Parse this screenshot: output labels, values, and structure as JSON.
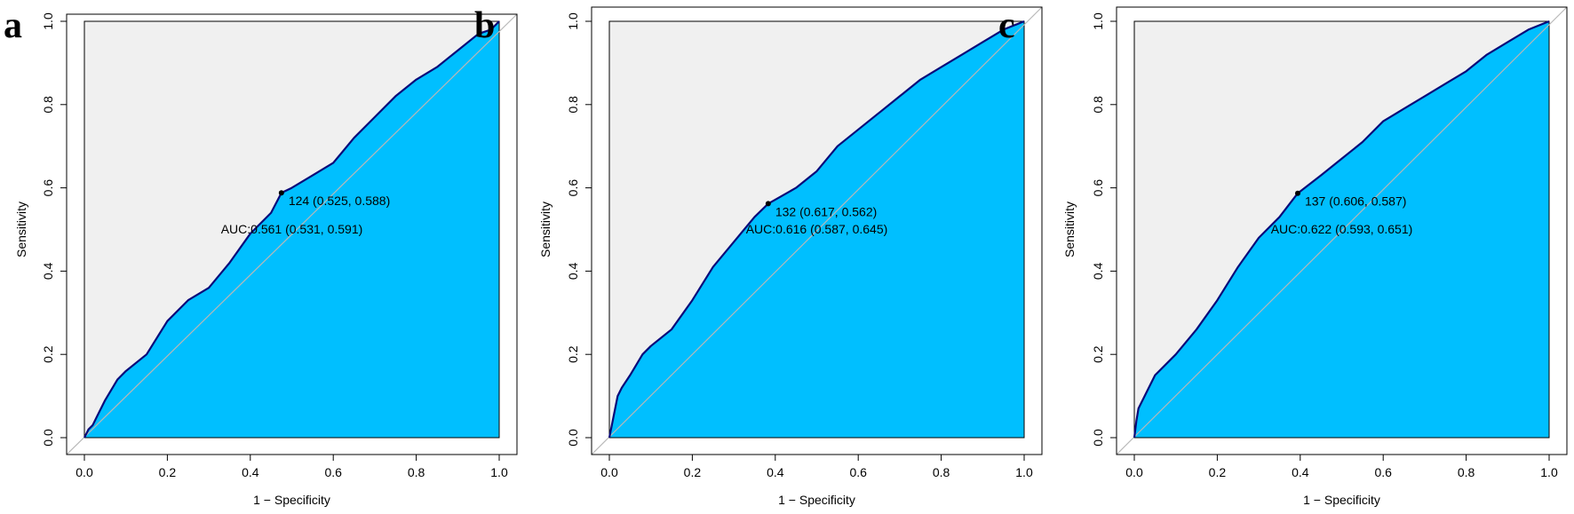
{
  "colors": {
    "fill": "#00BFFF",
    "curve": "#0A0A7A",
    "outside": "#F0F0F0",
    "diagonal": "#B8B8B8"
  },
  "chart_data": [
    {
      "panel": "a",
      "type": "area",
      "xlabel": "1 − Specificity",
      "ylabel": "Sensitivity",
      "xlim": [
        0,
        1
      ],
      "ylim": [
        0,
        1
      ],
      "xticks": [
        "0.0",
        "0.2",
        "0.4",
        "0.6",
        "0.8",
        "1.0"
      ],
      "yticks": [
        "0.0",
        "0.2",
        "0.4",
        "0.6",
        "0.8",
        "1.0"
      ],
      "grid": false,
      "threshold": {
        "x": 0.475,
        "y": 0.588,
        "label": "124 (0.525, 0.588)"
      },
      "auc_label": "AUC:0.561 (0.531, 0.591)",
      "curve": {
        "x": [
          0,
          0.01,
          0.02,
          0.03,
          0.05,
          0.08,
          0.1,
          0.15,
          0.2,
          0.25,
          0.3,
          0.35,
          0.4,
          0.45,
          0.475,
          0.5,
          0.55,
          0.6,
          0.65,
          0.7,
          0.75,
          0.8,
          0.85,
          0.9,
          0.95,
          0.98,
          1.0
        ],
        "y": [
          0,
          0.02,
          0.03,
          0.05,
          0.09,
          0.14,
          0.16,
          0.2,
          0.28,
          0.33,
          0.36,
          0.42,
          0.49,
          0.54,
          0.588,
          0.6,
          0.63,
          0.66,
          0.72,
          0.77,
          0.82,
          0.86,
          0.89,
          0.93,
          0.97,
          0.98,
          1.0
        ]
      }
    },
    {
      "panel": "b",
      "type": "area",
      "xlabel": "1 − Specificity",
      "ylabel": "Sensitivity",
      "xlim": [
        0,
        1
      ],
      "ylim": [
        0,
        1
      ],
      "xticks": [
        "0.0",
        "0.2",
        "0.4",
        "0.6",
        "0.8",
        "1.0"
      ],
      "yticks": [
        "0.0",
        "0.2",
        "0.4",
        "0.6",
        "0.8",
        "1.0"
      ],
      "grid": false,
      "threshold": {
        "x": 0.383,
        "y": 0.562,
        "label": "132 (0.617, 0.562)"
      },
      "auc_label": "AUC:0.616 (0.587, 0.645)",
      "curve": {
        "x": [
          0,
          0.01,
          0.02,
          0.03,
          0.05,
          0.08,
          0.1,
          0.15,
          0.2,
          0.25,
          0.3,
          0.35,
          0.383,
          0.45,
          0.5,
          0.55,
          0.6,
          0.65,
          0.7,
          0.75,
          0.8,
          0.85,
          0.9,
          0.95,
          1.0
        ],
        "y": [
          0,
          0.05,
          0.1,
          0.12,
          0.15,
          0.2,
          0.22,
          0.26,
          0.33,
          0.41,
          0.47,
          0.53,
          0.562,
          0.6,
          0.64,
          0.7,
          0.74,
          0.78,
          0.82,
          0.86,
          0.89,
          0.92,
          0.95,
          0.98,
          1.0
        ]
      }
    },
    {
      "panel": "c",
      "type": "area",
      "xlabel": "1 − Specificity",
      "ylabel": "Sensitivity",
      "xlim": [
        0,
        1
      ],
      "ylim": [
        0,
        1
      ],
      "xticks": [
        "0.0",
        "0.2",
        "0.4",
        "0.6",
        "0.8",
        "1.0"
      ],
      "yticks": [
        "0.0",
        "0.2",
        "0.4",
        "0.6",
        "0.8",
        "1.0"
      ],
      "grid": false,
      "threshold": {
        "x": 0.394,
        "y": 0.587,
        "label": "137 (0.606, 0.587)"
      },
      "auc_label": "AUC:0.622 (0.593, 0.651)",
      "curve": {
        "x": [
          0,
          0.005,
          0.01,
          0.02,
          0.03,
          0.05,
          0.08,
          0.1,
          0.15,
          0.2,
          0.25,
          0.3,
          0.35,
          0.394,
          0.45,
          0.5,
          0.55,
          0.6,
          0.65,
          0.7,
          0.75,
          0.8,
          0.85,
          0.9,
          0.95,
          1.0
        ],
        "y": [
          0,
          0.04,
          0.07,
          0.09,
          0.11,
          0.15,
          0.18,
          0.2,
          0.26,
          0.33,
          0.41,
          0.48,
          0.53,
          0.587,
          0.63,
          0.67,
          0.71,
          0.76,
          0.79,
          0.82,
          0.85,
          0.88,
          0.92,
          0.95,
          0.98,
          1.0
        ]
      }
    }
  ]
}
